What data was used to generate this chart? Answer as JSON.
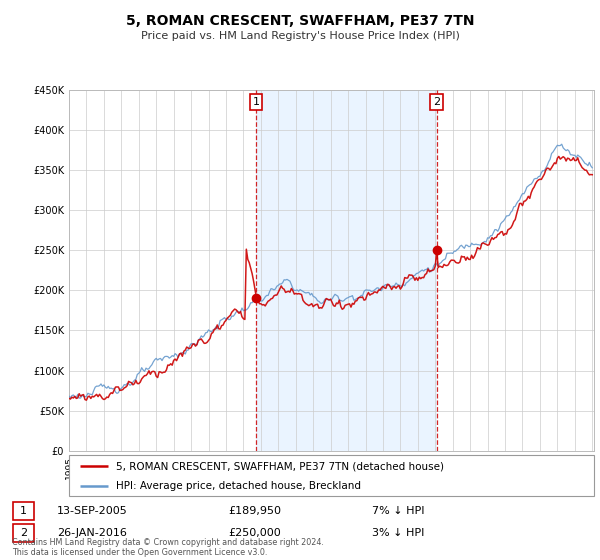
{
  "title": "5, ROMAN CRESCENT, SWAFFHAM, PE37 7TN",
  "subtitle": "Price paid vs. HM Land Registry's House Price Index (HPI)",
  "legend_line1": "5, ROMAN CRESCENT, SWAFFHAM, PE37 7TN (detached house)",
  "legend_line2": "HPI: Average price, detached house, Breckland",
  "transaction1_date": "13-SEP-2005",
  "transaction1_price": 189950,
  "transaction1_pct": "7% ↓ HPI",
  "transaction2_date": "26-JAN-2016",
  "transaction2_price": 250000,
  "transaction2_pct": "3% ↓ HPI",
  "footer": "Contains HM Land Registry data © Crown copyright and database right 2024.\nThis data is licensed under the Open Government Licence v3.0.",
  "red_color": "#cc0000",
  "blue_color": "#6699cc",
  "shade_color": "#ddeeff",
  "ylim_min": 0,
  "ylim_max": 450000,
  "start_year": 1995,
  "end_year": 2025,
  "t1_year": 2005.72,
  "t2_year": 2016.07
}
